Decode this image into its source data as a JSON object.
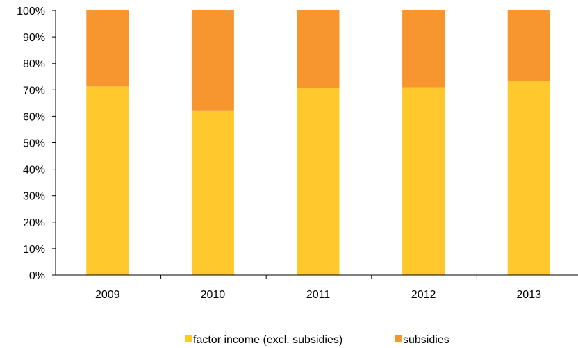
{
  "chart_data": {
    "type": "bar",
    "stacked": true,
    "categories": [
      "2009",
      "2010",
      "2011",
      "2012",
      "2013"
    ],
    "series": [
      {
        "name": "factor income (excl. subsidies)",
        "color": "#FFC82D",
        "values": [
          71.3,
          62.0,
          70.8,
          71.0,
          73.4
        ]
      },
      {
        "name": "subsidies",
        "color": "#F7962E",
        "values": [
          28.7,
          38.0,
          29.2,
          29.0,
          26.6
        ]
      }
    ],
    "yticks": [
      "0%",
      "10%",
      "20%",
      "30%",
      "40%",
      "50%",
      "60%",
      "70%",
      "80%",
      "90%",
      "100%"
    ],
    "ylim": [
      0,
      100
    ],
    "grid": false,
    "legend_position": "bottom"
  }
}
